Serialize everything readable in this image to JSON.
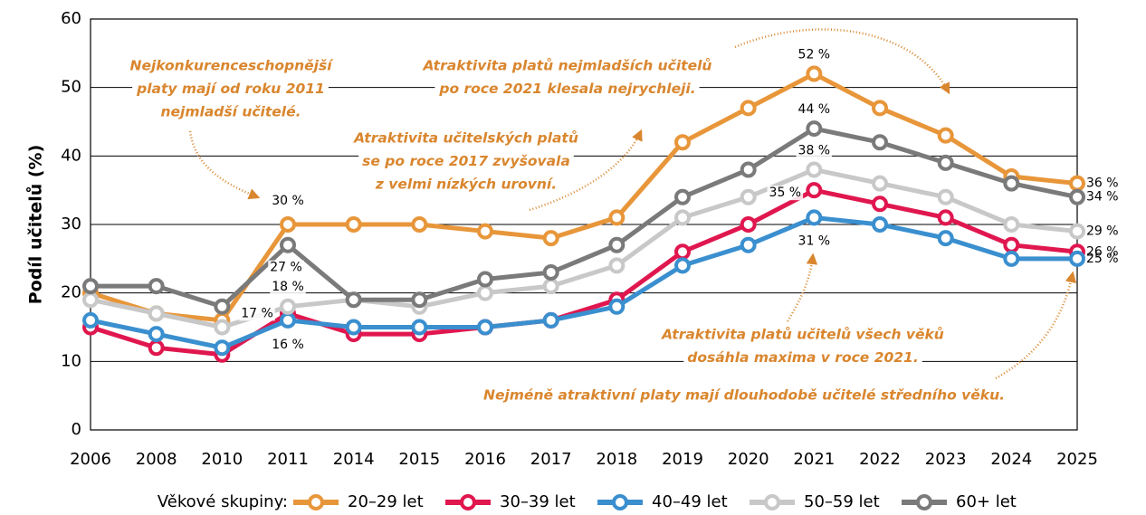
{
  "chart_data": {
    "type": "line",
    "y_label": "Podíl učitelů (%)",
    "categories": [
      "2006",
      "2008",
      "2010",
      "2011",
      "2014",
      "2015",
      "2016",
      "2017",
      "2018",
      "2019",
      "2020",
      "2021",
      "2022",
      "2023",
      "2024",
      "2025"
    ],
    "ylim": [
      0,
      60
    ],
    "yticks": [
      0,
      10,
      20,
      30,
      40,
      50,
      60
    ],
    "grid": true,
    "legend_title": "Věkové skupiny:",
    "legend": "bottom",
    "series": [
      {
        "name": "20–29 let",
        "color": "#e8963a",
        "values": [
          20,
          17,
          16,
          30,
          30,
          30,
          29,
          28,
          31,
          42,
          47,
          52,
          47,
          43,
          37,
          36
        ],
        "value_labels": [
          null,
          null,
          null,
          "30 %",
          null,
          null,
          null,
          null,
          null,
          null,
          null,
          "52 %",
          null,
          null,
          null,
          "36 %"
        ]
      },
      {
        "name": "30–39 let",
        "color": "#e0174f",
        "values": [
          15,
          12,
          11,
          17,
          14,
          14,
          15,
          16,
          19,
          26,
          30,
          35,
          33,
          31,
          27,
          26
        ],
        "value_labels": [
          null,
          null,
          null,
          "17 %",
          null,
          null,
          null,
          null,
          null,
          null,
          null,
          "35 %",
          null,
          null,
          null,
          "26 %"
        ]
      },
      {
        "name": "40–49 let",
        "color": "#3a8fcf",
        "values": [
          16,
          14,
          12,
          16,
          15,
          15,
          15,
          16,
          18,
          24,
          27,
          31,
          30,
          28,
          25,
          25
        ],
        "value_labels": [
          null,
          null,
          null,
          "16 %",
          null,
          null,
          null,
          null,
          null,
          null,
          null,
          "31 %",
          null,
          null,
          null,
          "25 %"
        ]
      },
      {
        "name": "50–59 let",
        "color": "#c8c8c8",
        "values": [
          19,
          17,
          15,
          18,
          19,
          18,
          20,
          21,
          24,
          31,
          34,
          38,
          36,
          34,
          30,
          29
        ],
        "value_labels": [
          null,
          null,
          null,
          "18 %",
          null,
          null,
          null,
          null,
          null,
          null,
          null,
          "38 %",
          null,
          null,
          null,
          "29 %"
        ]
      },
      {
        "name": "60+ let",
        "color": "#7a7a7a",
        "values": [
          21,
          21,
          18,
          27,
          19,
          19,
          22,
          23,
          27,
          34,
          38,
          44,
          42,
          39,
          36,
          34
        ],
        "value_labels": [
          null,
          null,
          null,
          "27 %",
          null,
          null,
          null,
          null,
          null,
          null,
          null,
          "44 %",
          null,
          null,
          null,
          "34 %"
        ]
      }
    ],
    "annotations": [
      {
        "lines": [
          "Nejkonkurenceschopnější",
          "platy mají od roku 2011",
          "nejmladší učitelé."
        ]
      },
      {
        "lines": [
          "Atraktivita platů nejmladších učitelů",
          "po roce 2021 klesala nejrychleji."
        ]
      },
      {
        "lines": [
          "Atraktivita učitelských platů",
          "se po roce 2017 zvyšovala",
          "z velmi nízkých urovní."
        ]
      },
      {
        "lines": [
          "Atraktivita platů učitelů všech věků",
          "dosáhla maxima v roce 2021."
        ]
      },
      {
        "lines": [
          "Nejméně atraktivní platy mají dlouhodobě učitelé středního věku."
        ]
      }
    ]
  }
}
